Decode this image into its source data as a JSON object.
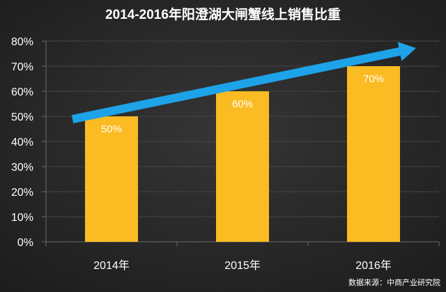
{
  "chart_data": {
    "type": "bar",
    "title": "2014-2016年阳澄湖大闸蟹线上销售比重",
    "categories": [
      "2014年",
      "2015年",
      "2016年"
    ],
    "values": [
      50,
      60,
      70
    ],
    "data_labels": [
      "50%",
      "60%",
      "70%"
    ],
    "ylim": [
      0,
      80
    ],
    "yticks": [
      0,
      10,
      20,
      30,
      40,
      50,
      60,
      70,
      80
    ],
    "ytick_labels": [
      "0%",
      "10%",
      "20%",
      "30%",
      "40%",
      "50%",
      "60%",
      "70%",
      "80%"
    ],
    "grid": true
  },
  "source": "数据来源：中商产业研究院",
  "icons": {
    "trend_arrow": "trend-arrow-icon"
  },
  "colors": {
    "background": "#1c1c1c",
    "bar": "#fbbb22",
    "arrow": "#1ea3e8",
    "text": "#ffffff",
    "grid": "#454545",
    "axis": "#6a6a6a"
  }
}
